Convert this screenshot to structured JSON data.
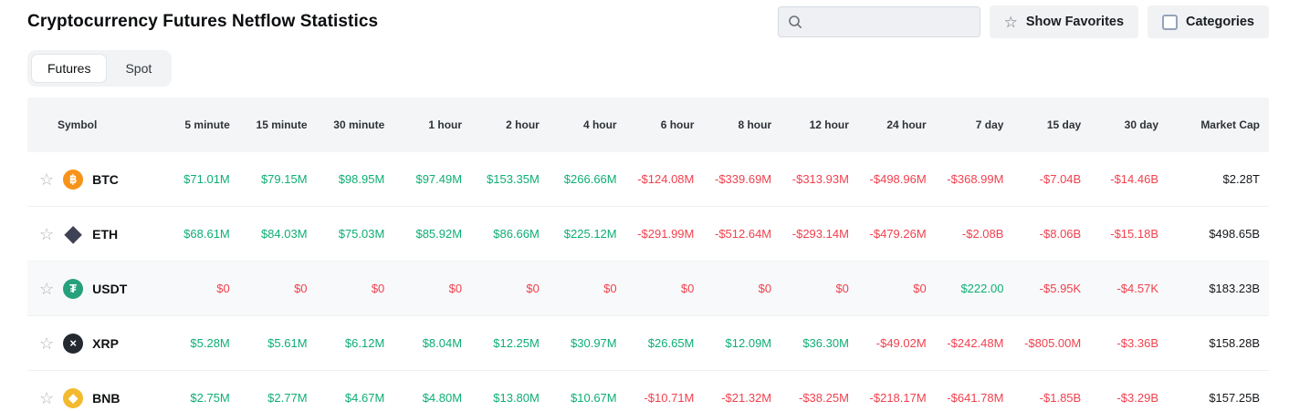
{
  "page": {
    "title": "Cryptocurrency Futures Netflow Statistics"
  },
  "toolbar": {
    "search_placeholder": "",
    "show_favorites": "Show Favorites",
    "categories": "Categories"
  },
  "tabs": [
    {
      "label": "Futures",
      "active": true
    },
    {
      "label": "Spot",
      "active": false
    }
  ],
  "colors": {
    "positive": "#0eae74",
    "negative": "#f0414e"
  },
  "icons": {
    "btc": {
      "bg": "#f7931a",
      "fg": "#ffffff",
      "glyph": "฿"
    },
    "eth": {
      "bg": "none",
      "fg": "#3f4254",
      "glyph": "◆",
      "flat": true
    },
    "usdt": {
      "bg": "#26a17b",
      "fg": "#ffffff",
      "glyph": "₮"
    },
    "xrp": {
      "bg": "#23292f",
      "fg": "#ffffff",
      "glyph": "×"
    },
    "bnb": {
      "bg": "#f3ba2f",
      "fg": "#ffffff",
      "glyph": "◆"
    }
  },
  "table": {
    "columns": [
      "Symbol",
      "5 minute",
      "15 minute",
      "30 minute",
      "1 hour",
      "2 hour",
      "4 hour",
      "6 hour",
      "8 hour",
      "12 hour",
      "24 hour",
      "7 day",
      "15 day",
      "30 day",
      "Market Cap"
    ],
    "rows": [
      {
        "symbol": "BTC",
        "icon": "btc",
        "hovered": false,
        "market_cap": "$2.28T",
        "cells": [
          {
            "t": "$71.01M",
            "s": "pos"
          },
          {
            "t": "$79.15M",
            "s": "pos"
          },
          {
            "t": "$98.95M",
            "s": "pos"
          },
          {
            "t": "$97.49M",
            "s": "pos"
          },
          {
            "t": "$153.35M",
            "s": "pos"
          },
          {
            "t": "$266.66M",
            "s": "pos"
          },
          {
            "t": "-$124.08M",
            "s": "neg"
          },
          {
            "t": "-$339.69M",
            "s": "neg"
          },
          {
            "t": "-$313.93M",
            "s": "neg"
          },
          {
            "t": "-$498.96M",
            "s": "neg"
          },
          {
            "t": "-$368.99M",
            "s": "neg"
          },
          {
            "t": "-$7.04B",
            "s": "neg"
          },
          {
            "t": "-$14.46B",
            "s": "neg"
          }
        ]
      },
      {
        "symbol": "ETH",
        "icon": "eth",
        "hovered": false,
        "market_cap": "$498.65B",
        "cells": [
          {
            "t": "$68.61M",
            "s": "pos"
          },
          {
            "t": "$84.03M",
            "s": "pos"
          },
          {
            "t": "$75.03M",
            "s": "pos"
          },
          {
            "t": "$85.92M",
            "s": "pos"
          },
          {
            "t": "$86.66M",
            "s": "pos"
          },
          {
            "t": "$225.12M",
            "s": "pos"
          },
          {
            "t": "-$291.99M",
            "s": "neg"
          },
          {
            "t": "-$512.64M",
            "s": "neg"
          },
          {
            "t": "-$293.14M",
            "s": "neg"
          },
          {
            "t": "-$479.26M",
            "s": "neg"
          },
          {
            "t": "-$2.08B",
            "s": "neg"
          },
          {
            "t": "-$8.06B",
            "s": "neg"
          },
          {
            "t": "-$15.18B",
            "s": "neg"
          }
        ]
      },
      {
        "symbol": "USDT",
        "icon": "usdt",
        "hovered": true,
        "market_cap": "$183.23B",
        "cells": [
          {
            "t": "$0",
            "s": "neg"
          },
          {
            "t": "$0",
            "s": "neg"
          },
          {
            "t": "$0",
            "s": "neg"
          },
          {
            "t": "$0",
            "s": "neg"
          },
          {
            "t": "$0",
            "s": "neg"
          },
          {
            "t": "$0",
            "s": "neg"
          },
          {
            "t": "$0",
            "s": "neg"
          },
          {
            "t": "$0",
            "s": "neg"
          },
          {
            "t": "$0",
            "s": "neg"
          },
          {
            "t": "$0",
            "s": "neg"
          },
          {
            "t": "$222.00",
            "s": "pos"
          },
          {
            "t": "-$5.95K",
            "s": "neg"
          },
          {
            "t": "-$4.57K",
            "s": "neg"
          }
        ]
      },
      {
        "symbol": "XRP",
        "icon": "xrp",
        "hovered": false,
        "market_cap": "$158.28B",
        "cells": [
          {
            "t": "$5.28M",
            "s": "pos"
          },
          {
            "t": "$5.61M",
            "s": "pos"
          },
          {
            "t": "$6.12M",
            "s": "pos"
          },
          {
            "t": "$8.04M",
            "s": "pos"
          },
          {
            "t": "$12.25M",
            "s": "pos"
          },
          {
            "t": "$30.97M",
            "s": "pos"
          },
          {
            "t": "$26.65M",
            "s": "pos"
          },
          {
            "t": "$12.09M",
            "s": "pos"
          },
          {
            "t": "$36.30M",
            "s": "pos"
          },
          {
            "t": "-$49.02M",
            "s": "neg"
          },
          {
            "t": "-$242.48M",
            "s": "neg"
          },
          {
            "t": "-$805.00M",
            "s": "neg"
          },
          {
            "t": "-$3.36B",
            "s": "neg"
          }
        ]
      },
      {
        "symbol": "BNB",
        "icon": "bnb",
        "hovered": false,
        "market_cap": "$157.25B",
        "cells": [
          {
            "t": "$2.75M",
            "s": "pos"
          },
          {
            "t": "$2.77M",
            "s": "pos"
          },
          {
            "t": "$4.67M",
            "s": "pos"
          },
          {
            "t": "$4.80M",
            "s": "pos"
          },
          {
            "t": "$13.80M",
            "s": "pos"
          },
          {
            "t": "$10.67M",
            "s": "pos"
          },
          {
            "t": "-$10.71M",
            "s": "neg"
          },
          {
            "t": "-$21.32M",
            "s": "neg"
          },
          {
            "t": "-$38.25M",
            "s": "neg"
          },
          {
            "t": "-$218.17M",
            "s": "neg"
          },
          {
            "t": "-$641.78M",
            "s": "neg"
          },
          {
            "t": "-$1.85B",
            "s": "neg"
          },
          {
            "t": "-$3.29B",
            "s": "neg"
          }
        ]
      }
    ]
  }
}
